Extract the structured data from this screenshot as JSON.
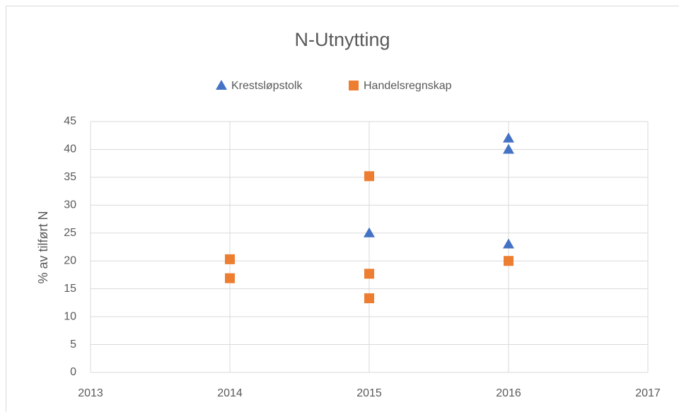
{
  "chart_data": {
    "type": "scatter",
    "title": "N-Utnytting",
    "ylabel": "% av tilført N",
    "series": [
      {
        "name": "Krestsløpstolk",
        "color": "#4472c4",
        "marker": "triangle",
        "x": [
          2015,
          2016,
          2016,
          2016
        ],
        "values": [
          25,
          42,
          40,
          23
        ]
      },
      {
        "name": "Handelsregnskap",
        "color": "#ed7d31",
        "marker": "square",
        "x": [
          2014,
          2014,
          2015,
          2015,
          2015,
          2016
        ],
        "values": [
          20.3,
          16.9,
          35.2,
          17.7,
          13.3,
          20
        ]
      }
    ],
    "xlim": [
      2013,
      2017
    ],
    "xticks": [
      2013,
      2014,
      2015,
      2016,
      2017
    ],
    "ylim": [
      0,
      45
    ],
    "yticks": [
      0,
      5,
      10,
      15,
      20,
      25,
      30,
      35,
      40,
      45
    ],
    "grid": true
  }
}
